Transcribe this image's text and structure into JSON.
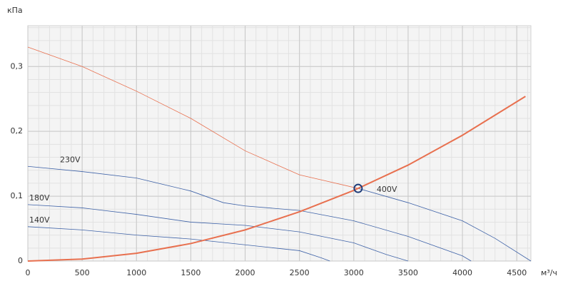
{
  "chart_data": {
    "type": "line",
    "y_label": "кПа",
    "x_label": "м³/ч",
    "xlim": [
      0,
      4630
    ],
    "ylim": [
      0,
      0.363
    ],
    "xticks": [
      0,
      500,
      1000,
      1500,
      2000,
      2500,
      3000,
      3500,
      4000,
      4500
    ],
    "yticks": [
      0,
      {
        "value": 0.1,
        "label": "0,1"
      },
      {
        "value": 0.2,
        "label": "0,2"
      },
      {
        "value": 0.3,
        "label": "0,3"
      }
    ],
    "grid": true,
    "minor_grid": true,
    "series": [
      {
        "name": "400V",
        "color": "#e8704f",
        "width": 0.8,
        "x": [
          0,
          500,
          1000,
          1500,
          2000,
          2500,
          3040
        ],
        "values": [
          0.33,
          0.3,
          0.262,
          0.22,
          0.17,
          0.133,
          0.112
        ]
      },
      {
        "color": "#3f63a8",
        "width": 0.8,
        "x": [
          3040,
          3500,
          4000,
          4300,
          4630
        ],
        "values": [
          0.112,
          0.09,
          0.062,
          0.035,
          0
        ]
      },
      {
        "name": "230V",
        "color": "#3f63a8",
        "width": 0.8,
        "x": [
          0,
          500,
          1000,
          1500,
          1800,
          2000,
          2500,
          3000,
          3500,
          4000,
          4080
        ],
        "values": [
          0.146,
          0.138,
          0.128,
          0.108,
          0.09,
          0.085,
          0.078,
          0.062,
          0.038,
          0.008,
          0
        ]
      },
      {
        "name": "180V",
        "color": "#3f63a8",
        "width": 0.8,
        "x": [
          0,
          500,
          1000,
          1500,
          2000,
          2500,
          3000,
          3300,
          3500
        ],
        "values": [
          0.087,
          0.082,
          0.072,
          0.06,
          0.055,
          0.045,
          0.028,
          0.01,
          0
        ]
      },
      {
        "name": "140V",
        "color": "#3f63a8",
        "width": 0.8,
        "x": [
          0,
          500,
          1000,
          1500,
          2000,
          2500,
          2700,
          2780
        ],
        "values": [
          0.053,
          0.048,
          0.04,
          0.034,
          0.025,
          0.016,
          0.005,
          0
        ]
      },
      {
        "color": "#e8704f",
        "width": 2,
        "x": [
          0,
          500,
          1000,
          1500,
          2000,
          2500,
          3000,
          3500,
          4000,
          4580
        ],
        "values": [
          0,
          0.003,
          0.012,
          0.027,
          0.048,
          0.076,
          0.109,
          0.148,
          0.194,
          0.254
        ]
      }
    ],
    "operating_point": {
      "x": 3040,
      "value": 0.112,
      "color": "#1f3d7a"
    }
  }
}
